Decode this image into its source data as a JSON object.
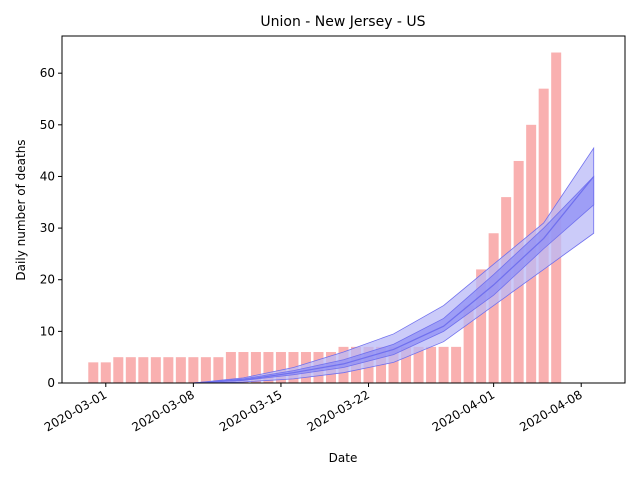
{
  "chart_data": {
    "type": "bar",
    "title": "Union - New Jersey - US",
    "xlabel": "Date",
    "ylabel": "Daily number of deaths",
    "x": [
      "2020-02-29",
      "2020-03-01",
      "2020-03-02",
      "2020-03-03",
      "2020-03-04",
      "2020-03-05",
      "2020-03-06",
      "2020-03-07",
      "2020-03-08",
      "2020-03-09",
      "2020-03-10",
      "2020-03-11",
      "2020-03-12",
      "2020-03-13",
      "2020-03-14",
      "2020-03-15",
      "2020-03-16",
      "2020-03-17",
      "2020-03-18",
      "2020-03-19",
      "2020-03-20",
      "2020-03-21",
      "2020-03-22",
      "2020-03-23",
      "2020-03-24",
      "2020-03-25",
      "2020-03-26",
      "2020-03-27",
      "2020-03-28",
      "2020-03-29",
      "2020-03-30",
      "2020-03-31",
      "2020-04-01",
      "2020-04-02",
      "2020-04-03",
      "2020-04-04",
      "2020-04-05",
      "2020-04-06"
    ],
    "values": [
      4,
      4,
      5,
      5,
      5,
      5,
      5,
      5,
      5,
      5,
      5,
      6,
      6,
      6,
      6,
      6,
      6,
      6,
      6,
      6,
      7,
      7,
      7,
      7,
      7,
      7,
      7,
      7,
      7,
      7,
      15,
      22,
      29,
      36,
      43,
      50,
      57,
      64
    ],
    "color": "#f9b0b0",
    "fit": {
      "x": [
        "2020-03-08",
        "2020-03-12",
        "2020-03-16",
        "2020-03-20",
        "2020-03-24",
        "2020-03-28",
        "2020-04-01",
        "2020-04-05",
        "2020-04-09"
      ],
      "center": [
        0,
        0.6,
        2,
        3.7,
        6.5,
        11,
        19,
        28,
        40
      ],
      "bands": [
        {
          "lower": [
            0,
            0.2,
            0.8,
            2,
            4,
            8,
            15,
            22,
            29
          ],
          "upper": [
            0,
            1,
            3,
            6,
            9.5,
            15,
            23,
            31,
            45.5
          ],
          "color": "#b9b9f7"
        },
        {
          "lower": [
            0,
            0.5,
            1.6,
            3,
            5.5,
            10,
            17,
            26,
            34.5
          ],
          "upper": [
            0,
            0.8,
            2.4,
            4.5,
            7.5,
            12.5,
            21,
            30,
            40
          ],
          "color": "#8f8ff4"
        }
      ],
      "color": "#7070ee"
    },
    "xlim": [
      "2020-02-26T12:00:00Z",
      "2020-04-11T12:00:00Z"
    ],
    "xticks": [
      "2020-03-01",
      "2020-03-08",
      "2020-03-15",
      "2020-03-22",
      "2020-04-01",
      "2020-04-08"
    ],
    "ylim": [
      0,
      67.2
    ],
    "yticks": [
      0,
      10,
      20,
      30,
      40,
      50,
      60
    ]
  }
}
